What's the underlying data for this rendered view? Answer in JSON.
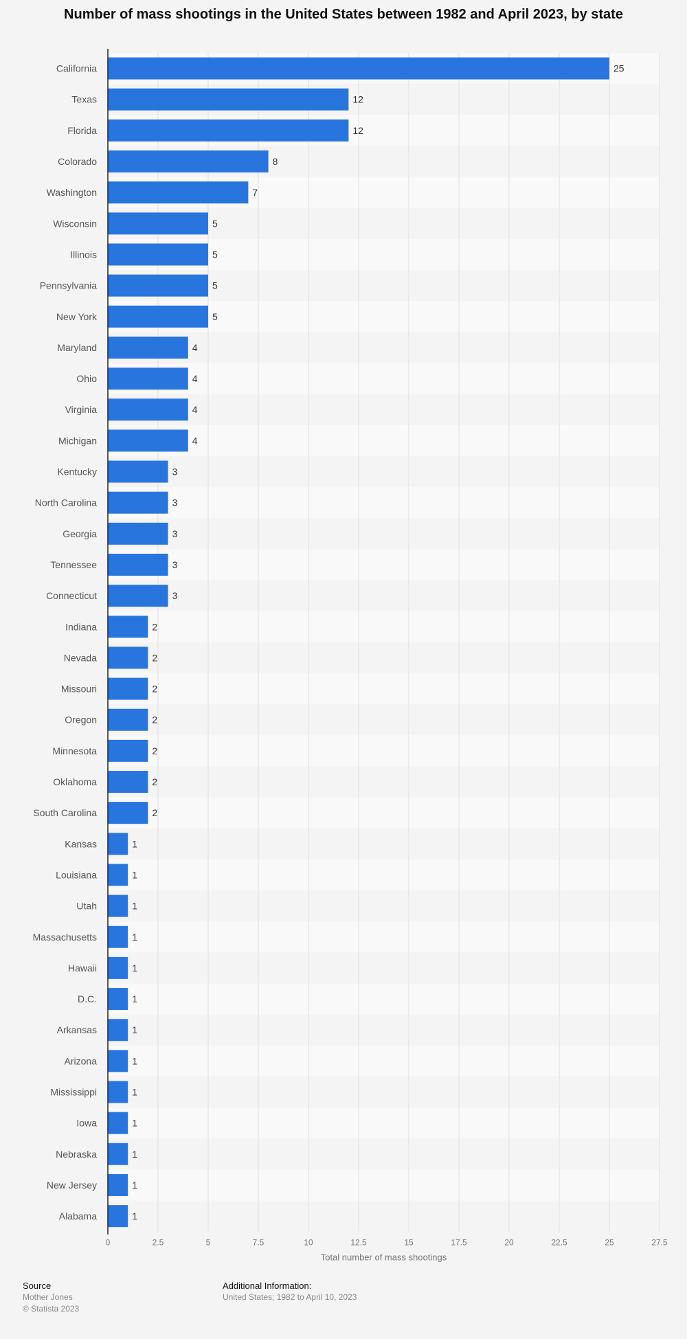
{
  "chart_data": {
    "type": "bar",
    "orientation": "horizontal",
    "title": "Number of mass shootings in the United States between 1982 and April 2023, by state",
    "xlabel": "Total number of mass shootings",
    "ylabel": "",
    "categories": [
      "California",
      "Texas",
      "Florida",
      "Colorado",
      "Washington",
      "Wisconsin",
      "Illinois",
      "Pennsylvania",
      "New York",
      "Maryland",
      "Ohio",
      "Virginia",
      "Michigan",
      "Kentucky",
      "North Carolina",
      "Georgia",
      "Tennessee",
      "Connecticut",
      "Indiana",
      "Nevada",
      "Missouri",
      "Oregon",
      "Minnesota",
      "Oklahoma",
      "South Carolina",
      "Kansas",
      "Louisiana",
      "Utah",
      "Massachusetts",
      "Hawaii",
      "D.C.",
      "Arkansas",
      "Arizona",
      "Mississippi",
      "Iowa",
      "Nebraska",
      "New Jersey",
      "Alabama"
    ],
    "values": [
      25,
      12,
      12,
      8,
      7,
      5,
      5,
      5,
      5,
      4,
      4,
      4,
      4,
      3,
      3,
      3,
      3,
      3,
      2,
      2,
      2,
      2,
      2,
      2,
      2,
      1,
      1,
      1,
      1,
      1,
      1,
      1,
      1,
      1,
      1,
      1,
      1,
      1
    ],
    "xlim": [
      0,
      27.5
    ],
    "xticks": [
      "0",
      "2.5",
      "5",
      "7.5",
      "10",
      "12.5",
      "15",
      "17.5",
      "20",
      "22.5",
      "25",
      "27.5"
    ],
    "grid": true,
    "bar_color": "#2876dd"
  },
  "footer": {
    "source_heading": "Source",
    "source_name": "Mother Jones",
    "copyright": "© Statista 2023",
    "info_heading": "Additional Information:",
    "info_text": "United States; 1982 to April 10, 2023"
  }
}
